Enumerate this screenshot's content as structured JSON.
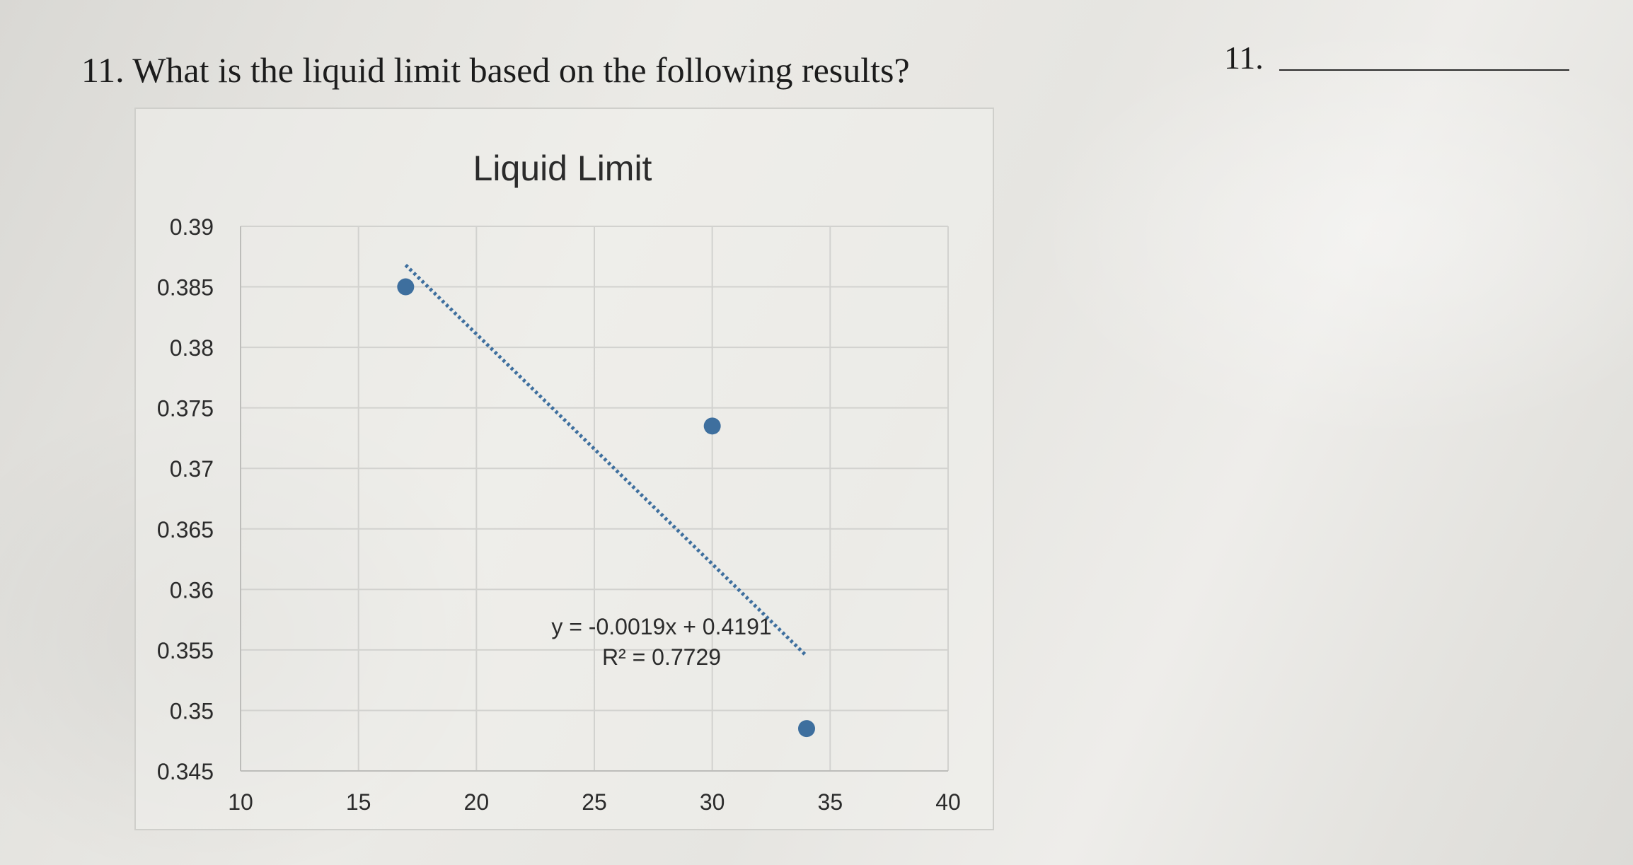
{
  "question": {
    "text": "11. What is the liquid limit based on the following results?",
    "answer_number": "11."
  },
  "chart_data": {
    "type": "scatter",
    "title": "Liquid Limit",
    "xlabel": "",
    "ylabel": "",
    "xlim": [
      10,
      40
    ],
    "ylim": [
      0.345,
      0.39
    ],
    "x_ticks": [
      "10",
      "15",
      "20",
      "25",
      "30",
      "35",
      "40"
    ],
    "y_ticks": [
      "0.39",
      "0.385",
      "0.38",
      "0.375",
      "0.37",
      "0.365",
      "0.36",
      "0.355",
      "0.35",
      "0.345"
    ],
    "grid": true,
    "points": [
      {
        "x": 17,
        "y": 0.385
      },
      {
        "x": 30,
        "y": 0.3735
      },
      {
        "x": 34,
        "y": 0.3485
      }
    ],
    "trendline": {
      "slope": -0.0019,
      "intercept": 0.4191,
      "x_range": [
        17,
        34
      ],
      "style": "dotted",
      "equation": "y = -0.0019x + 0.4191",
      "r_squared": "R² = 0.7729"
    },
    "colors": {
      "marker": "#3e6f9e",
      "trendline": "#3e6f9e",
      "grid": "#d2d2cf",
      "text": "#2b2b2b"
    }
  }
}
